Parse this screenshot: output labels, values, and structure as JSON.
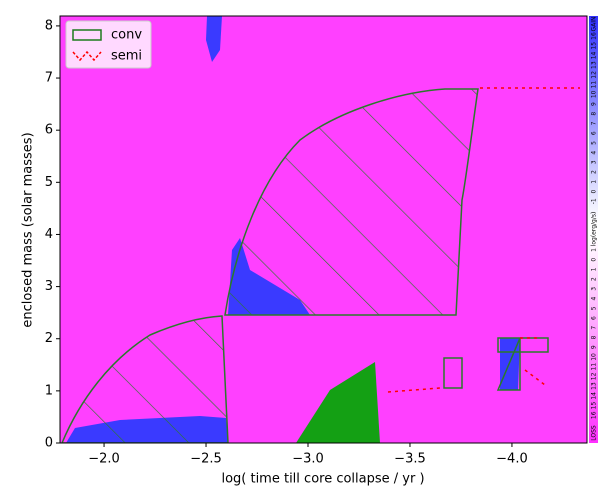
{
  "chart_data": {
    "type": "kippenhahn",
    "xlabel": "log( time till core collapse / yr )",
    "ylabel": "enclosed mass (solar masses)",
    "xlim": [
      -1.784,
      -4.368
    ],
    "xticks": [
      {
        "value": -2,
        "label": "−2.0"
      },
      {
        "value": -2.5,
        "label": "−2.5"
      },
      {
        "value": -3,
        "label": "−3.0"
      },
      {
        "value": -3.5,
        "label": "−3.5"
      },
      {
        "value": -4,
        "label": "−4.0"
      }
    ],
    "ylim": [
      0,
      8.19
    ],
    "yticks": [
      0,
      1,
      2,
      3,
      4,
      5,
      6,
      7,
      8
    ],
    "legend": [
      {
        "name": "conv",
        "color": "#1f7a1f"
      },
      {
        "name": "semi",
        "color": "#ff0000"
      }
    ],
    "colorbar": {
      "gain_label": "GAIN",
      "loss_label": "LOSS",
      "unit_label": "log(erg/g/s)",
      "gain_ticks": [
        16,
        15,
        14,
        13,
        12,
        11,
        10,
        9,
        8,
        7,
        6,
        5,
        4,
        3,
        2,
        1,
        0,
        -1
      ],
      "loss_ticks": [
        1,
        0,
        1,
        2,
        3,
        4,
        5,
        6,
        7,
        8,
        9,
        10,
        11,
        12,
        13,
        14,
        15,
        16
      ]
    }
  }
}
